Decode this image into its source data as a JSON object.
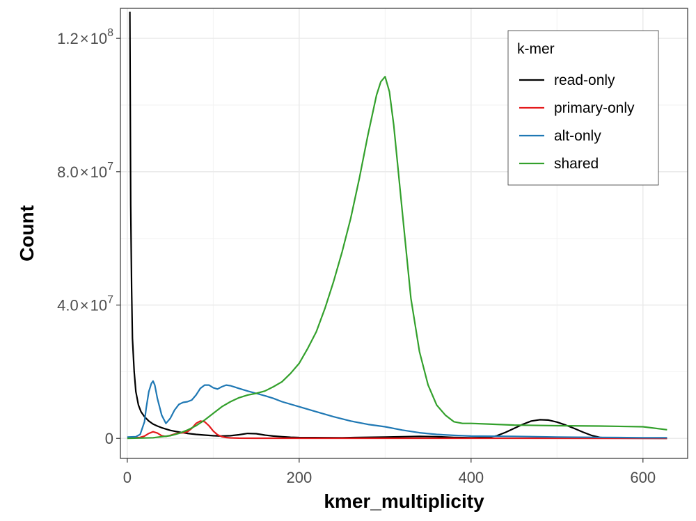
{
  "chart_data": {
    "type": "line",
    "title": "",
    "xlabel": "kmer_multiplicity",
    "ylabel": "Count",
    "xlim": [
      -8,
      652
    ],
    "ylim": [
      -6000000,
      129000000
    ],
    "x_ticks": [
      0,
      200,
      400,
      600
    ],
    "x_tick_labels": [
      "0",
      "200",
      "400",
      "600"
    ],
    "y_ticks": [
      0,
      40000000,
      80000000,
      120000000
    ],
    "y_tick_labels": [
      {
        "value": 0,
        "plain": "0"
      },
      {
        "value": 40000000,
        "mantissa": "4.0",
        "times": "×",
        "base": "10",
        "exp": "7"
      },
      {
        "value": 80000000,
        "mantissa": "8.0",
        "times": "×",
        "base": "10",
        "exp": "7"
      },
      {
        "value": 120000000,
        "mantissa": "1.2",
        "times": "×",
        "base": "10",
        "exp": "8"
      }
    ],
    "grid": true,
    "legend": {
      "title": "k-mer",
      "position": "top-right"
    },
    "series": [
      {
        "name": "read-only",
        "color": "#000000",
        "x": [
          3,
          4,
          5,
          6,
          8,
          10,
          13,
          16,
          20,
          25,
          30,
          35,
          40,
          50,
          60,
          70,
          80,
          90,
          100,
          110,
          120,
          130,
          140,
          150,
          160,
          170,
          180,
          190,
          200,
          250,
          300,
          320,
          340,
          360,
          380,
          400,
          420,
          430,
          440,
          450,
          460,
          470,
          480,
          490,
          500,
          510,
          520,
          530,
          540,
          550,
          560,
          600,
          628
        ],
        "y": [
          128000000,
          70000000,
          45000000,
          30000000,
          20000000,
          14000000,
          10000000,
          8000000,
          6500000,
          5200000,
          4300000,
          3700000,
          3200000,
          2400000,
          1900000,
          1500000,
          1200000,
          1000000,
          800000,
          700000,
          800000,
          1100000,
          1500000,
          1400000,
          1000000,
          700000,
          500000,
          350000,
          250000,
          200000,
          400000,
          500000,
          600000,
          500000,
          300000,
          200000,
          300000,
          800000,
          1800000,
          3000000,
          4200000,
          5200000,
          5600000,
          5500000,
          4900000,
          4000000,
          3000000,
          1900000,
          900000,
          300000,
          100000,
          50000,
          30000
        ]
      },
      {
        "name": "primary-only",
        "color": "#e41a1c",
        "x": [
          0,
          15,
          20,
          25,
          30,
          35,
          40,
          45,
          50,
          55,
          60,
          65,
          70,
          75,
          80,
          85,
          90,
          95,
          100,
          105,
          110,
          115,
          120,
          130,
          150,
          628
        ],
        "y": [
          100000,
          300000,
          700000,
          1500000,
          2000000,
          1600000,
          800000,
          600000,
          900000,
          1300000,
          1600000,
          1700000,
          2000000,
          3000000,
          4500000,
          5200000,
          5000000,
          3800000,
          2200000,
          1100000,
          500000,
          250000,
          150000,
          80000,
          50000,
          30000
        ]
      },
      {
        "name": "alt-only",
        "color": "#1f78b4",
        "x": [
          0,
          10,
          15,
          20,
          22,
          25,
          28,
          30,
          32,
          35,
          40,
          45,
          50,
          55,
          60,
          65,
          70,
          75,
          80,
          85,
          90,
          95,
          100,
          105,
          110,
          115,
          120,
          125,
          130,
          140,
          150,
          160,
          170,
          180,
          200,
          220,
          240,
          260,
          280,
          300,
          320,
          340,
          360,
          380,
          400,
          450,
          500,
          550,
          600,
          628
        ],
        "y": [
          400000,
          500000,
          1200000,
          5000000,
          9000000,
          14000000,
          16500000,
          17200000,
          16000000,
          12000000,
          7000000,
          4500000,
          6000000,
          8500000,
          10200000,
          10800000,
          11000000,
          11500000,
          13000000,
          15000000,
          16000000,
          16000000,
          15200000,
          14800000,
          15500000,
          16000000,
          15800000,
          15400000,
          15000000,
          14200000,
          13500000,
          12800000,
          12000000,
          11000000,
          9500000,
          8000000,
          6500000,
          5200000,
          4200000,
          3500000,
          2500000,
          1700000,
          1200000,
          900000,
          700000,
          600000,
          400000,
          300000,
          200000,
          200000
        ]
      },
      {
        "name": "shared",
        "color": "#33a02c",
        "x": [
          0,
          30,
          50,
          60,
          70,
          80,
          90,
          100,
          110,
          120,
          130,
          140,
          150,
          160,
          170,
          180,
          190,
          200,
          210,
          220,
          230,
          240,
          250,
          260,
          270,
          280,
          290,
          295,
          300,
          305,
          310,
          320,
          330,
          340,
          350,
          360,
          370,
          380,
          390,
          400,
          420,
          450,
          500,
          550,
          600,
          628
        ],
        "y": [
          0,
          200000,
          800000,
          1500000,
          2500000,
          3800000,
          5500000,
          7500000,
          9500000,
          11000000,
          12200000,
          13000000,
          13500000,
          14200000,
          15500000,
          17000000,
          19500000,
          22500000,
          27000000,
          32000000,
          39000000,
          47000000,
          56000000,
          66000000,
          78000000,
          91000000,
          103000000,
          107000000,
          108500000,
          104000000,
          94000000,
          68000000,
          42000000,
          26000000,
          16000000,
          10000000,
          7000000,
          5000000,
          4500000,
          4500000,
          4300000,
          4000000,
          3800000,
          3700000,
          3500000,
          2600000
        ]
      }
    ]
  }
}
